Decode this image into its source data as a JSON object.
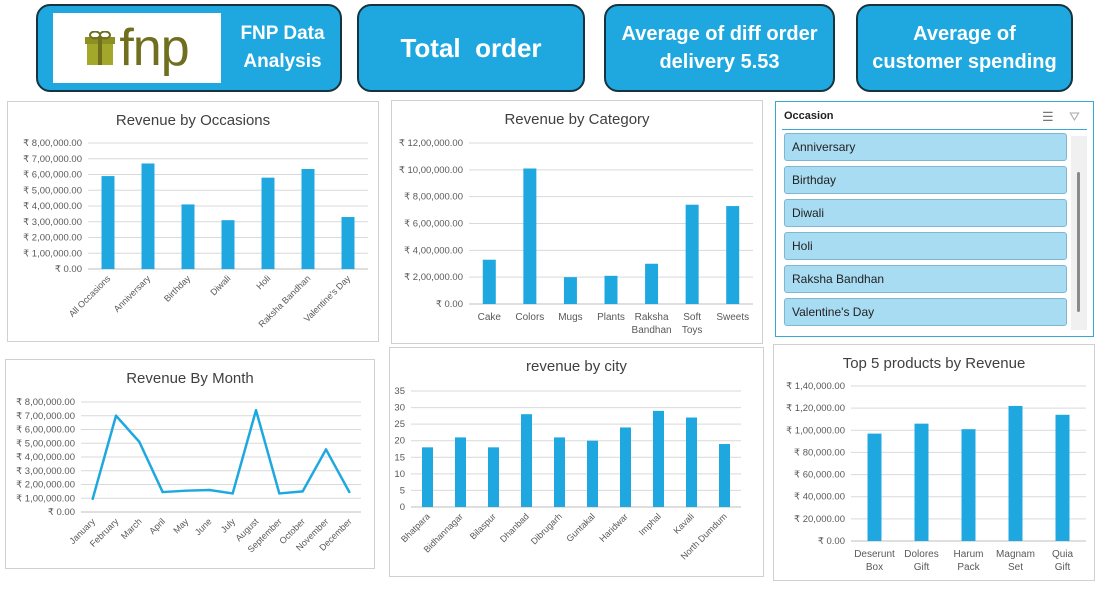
{
  "header": {
    "logo_text": "fnp",
    "title": "FNP Data\nAnalysis",
    "kpis": [
      {
        "label": "Total  order"
      },
      {
        "label": "Average of diff order\ndelivery 5.53"
      },
      {
        "label": "Average of\ncustomer spending"
      }
    ]
  },
  "slicer": {
    "title": "Occasion",
    "items": [
      "Anniversary",
      "Birthday",
      "Diwali",
      "Holi",
      "Raksha Bandhan",
      "Valentine's Day"
    ]
  },
  "colors": {
    "bar": "#1fa8e0",
    "kpi_bg": "#1fa8e0",
    "logo_text": "#6f6f1f"
  },
  "chart_data": [
    {
      "id": "occasions",
      "type": "bar",
      "title": "Revenue by Occasions",
      "categories": [
        "All Occasions",
        "Anniversary",
        "Birthday",
        "Diwali",
        "Holi",
        "Raksha Bandhan",
        "Valentine's Day"
      ],
      "values": [
        590000,
        670000,
        410000,
        310000,
        580000,
        635000,
        330000
      ],
      "ylim": [
        0,
        800000
      ],
      "yticks": [
        "₹ 0.00",
        "₹ 1,00,000.00",
        "₹ 2,00,000.00",
        "₹ 3,00,000.00",
        "₹ 4,00,000.00",
        "₹ 5,00,000.00",
        "₹ 6,00,000.00",
        "₹ 7,00,000.00",
        "₹ 8,00,000.00"
      ]
    },
    {
      "id": "category",
      "type": "bar",
      "title": "Revenue by Category",
      "categories": [
        "Cake",
        "Colors",
        "Mugs",
        "Plants",
        "Raksha Bandhan",
        "Soft Toys",
        "Sweets"
      ],
      "values": [
        330000,
        1010000,
        200000,
        210000,
        300000,
        740000,
        730000
      ],
      "ylim": [
        0,
        1200000
      ],
      "yticks": [
        "₹ 0.00",
        "₹ 2,00,000.00",
        "₹ 4,00,000.00",
        "₹ 6,00,000.00",
        "₹ 8,00,000.00",
        "₹ 10,00,000.00",
        "₹ 12,00,000.00"
      ]
    },
    {
      "id": "month",
      "type": "line",
      "title": "Revenue By Month",
      "categories": [
        "January",
        "February",
        "March",
        "April",
        "May",
        "June",
        "July",
        "August",
        "September",
        "October",
        "November",
        "December"
      ],
      "values": [
        95000,
        700000,
        510000,
        145000,
        155000,
        160000,
        135000,
        740000,
        135000,
        150000,
        455000,
        145000
      ],
      "ylim": [
        0,
        800000
      ],
      "yticks": [
        "₹ 0.00",
        "₹ 1,00,000.00",
        "₹ 2,00,000.00",
        "₹ 3,00,000.00",
        "₹ 4,00,000.00",
        "₹ 5,00,000.00",
        "₹ 6,00,000.00",
        "₹ 7,00,000.00",
        "₹ 8,00,000.00"
      ]
    },
    {
      "id": "city",
      "type": "bar",
      "title": "revenue by city",
      "categories": [
        "Bhatpara",
        "Bidhannagar",
        "Bilaspur",
        "Dhanbad",
        "Dibrugarh",
        "Guntakal",
        "Haridwar",
        "Imphal",
        "Kavali",
        "North Dumdum"
      ],
      "values": [
        18,
        21,
        18,
        28,
        21,
        20,
        24,
        29,
        27,
        19
      ],
      "ylim": [
        0,
        35
      ],
      "yticks": [
        "0",
        "5",
        "10",
        "15",
        "20",
        "25",
        "30",
        "35"
      ]
    },
    {
      "id": "top5",
      "type": "bar",
      "title": "Top 5 products by Revenue",
      "categories": [
        "Deserunt Box",
        "Dolores Gift",
        "Harum Pack",
        "Magnam Set",
        "Quia Gift"
      ],
      "values": [
        97000,
        106000,
        101000,
        122000,
        114000
      ],
      "ylim": [
        0,
        140000
      ],
      "yticks": [
        "₹ 0.00",
        "₹ 20,000.00",
        "₹ 40,000.00",
        "₹ 60,000.00",
        "₹ 80,000.00",
        "₹ 1,00,000.00",
        "₹ 1,20,000.00",
        "₹ 1,40,000.00"
      ]
    }
  ]
}
